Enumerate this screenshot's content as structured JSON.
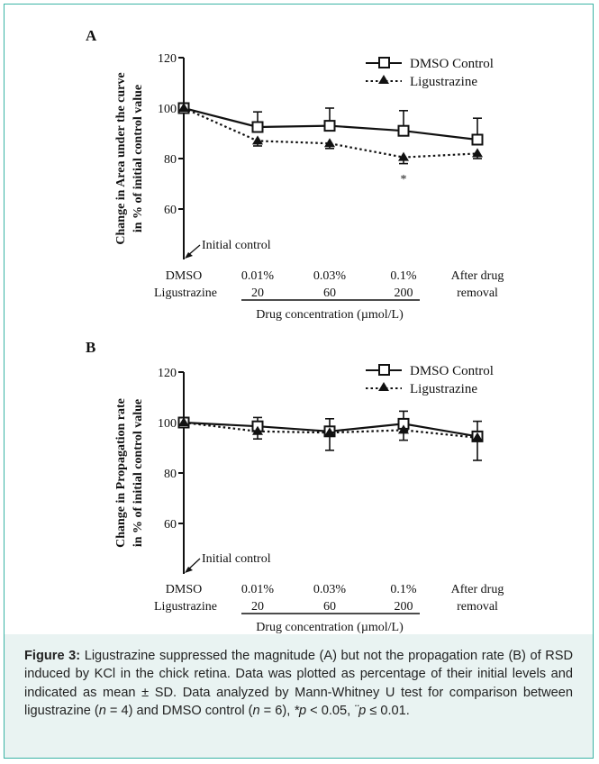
{
  "caption": {
    "label": "Figure 3:",
    "text_1": " Ligustrazine suppressed the magnitude (A) but not the propagation rate (B) of RSD induced by KCl in the chick retina. Data was plotted as percentage of their initial levels and indicated as mean ± SD. Data analyzed by Mann-Whitney U test for comparison between ligustrazine (",
    "n_italic": "n",
    "text_2": " = 4) and DMSO control (",
    "text_3": " = 6), ",
    "p1": "*p",
    "text_4": " < 0.05, ",
    "p2": "¨p",
    "text_5": " ≤ 0.01."
  },
  "chart_data": [
    {
      "panel": "A",
      "type": "line",
      "ylabel_line1": "Change in Area under the curve",
      "ylabel_line2": "in % of initial control value",
      "yticks": [
        60,
        80,
        100,
        120
      ],
      "ylim": [
        40,
        120
      ],
      "categories": [
        "DMSO",
        "0.01%",
        "0.03%",
        "0.1%",
        "After drug"
      ],
      "categories_row2": [
        "Ligustrazine",
        "20",
        "60",
        "200",
        "removal"
      ],
      "xlabel": "Drug concentration (µmol/L)",
      "annotation": "Initial control",
      "star_label": "*",
      "series": [
        {
          "name": "DMSO Control",
          "values": [
            100,
            92.5,
            93,
            91,
            87.5
          ],
          "err": [
            0,
            6,
            7,
            8,
            8.5
          ],
          "style": "solid",
          "marker": "square"
        },
        {
          "name": "Ligustrazine",
          "values": [
            100,
            87,
            86,
            80.5,
            82
          ],
          "err": [
            0,
            2,
            2,
            2.5,
            2
          ],
          "style": "dotted",
          "marker": "triangle"
        }
      ]
    },
    {
      "panel": "B",
      "type": "line",
      "ylabel_line1": "Change in Propagation rate",
      "ylabel_line2": "in % of initial control value",
      "yticks": [
        60,
        80,
        100,
        120
      ],
      "ylim": [
        40,
        120
      ],
      "categories": [
        "DMSO",
        "0.01%",
        "0.03%",
        "0.1%",
        "After drug"
      ],
      "categories_row2": [
        "Ligustrazine",
        "20",
        "60",
        "200",
        "removal"
      ],
      "xlabel": "Drug concentration (µmol/L)",
      "annotation": "Initial control",
      "series": [
        {
          "name": "DMSO Control",
          "values": [
            100,
            98.5,
            96.5,
            99.5,
            94.5
          ],
          "err": [
            0,
            3.5,
            5,
            5,
            6
          ],
          "style": "solid",
          "marker": "square"
        },
        {
          "name": "Ligustrazine",
          "values": [
            100,
            96.5,
            96,
            97,
            94
          ],
          "err": [
            0,
            3,
            7,
            4,
            9
          ],
          "style": "dotted",
          "marker": "triangle"
        }
      ]
    }
  ]
}
